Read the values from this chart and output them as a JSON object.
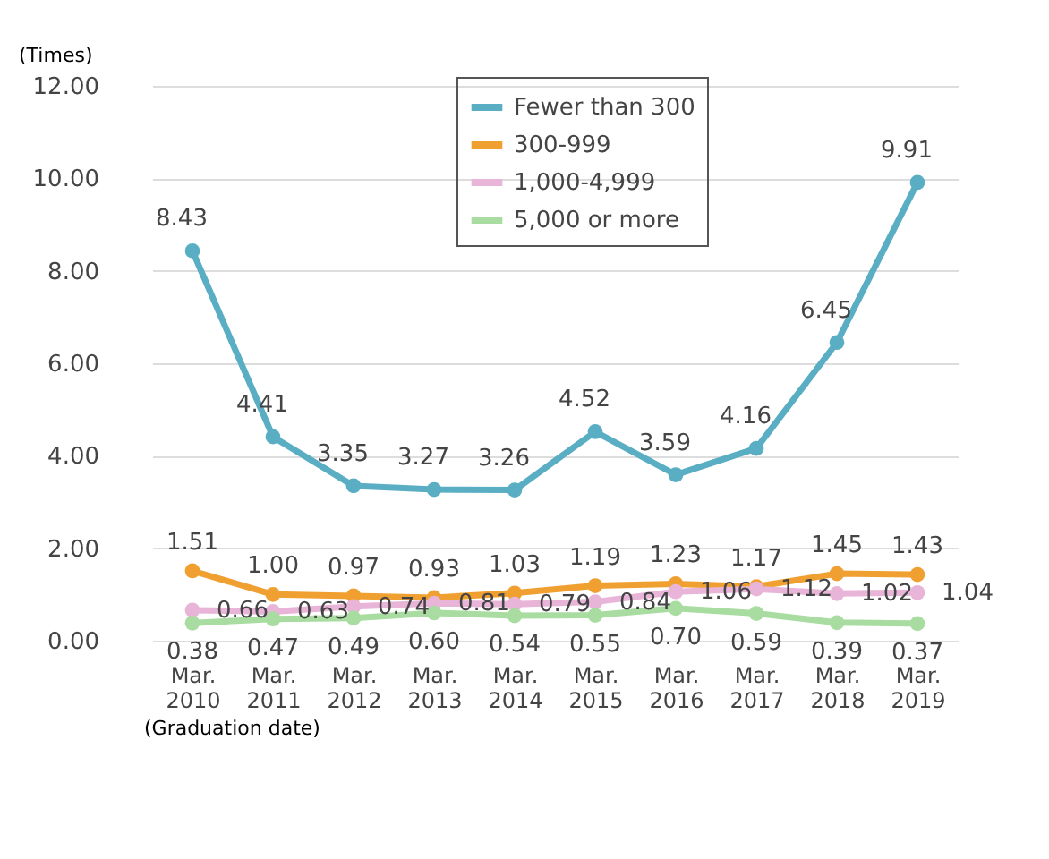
{
  "chart_data": {
    "type": "line",
    "ylabel": "(Times)",
    "xlabel": "(Graduation date)",
    "categories": [
      "Mar. 2010",
      "Mar. 2011",
      "Mar. 2012",
      "Mar. 2013",
      "Mar. 2014",
      "Mar. 2015",
      "Mar. 2016",
      "Mar. 2017",
      "Mar. 2018",
      "Mar. 2019"
    ],
    "series": [
      {
        "name": "Fewer than 300",
        "color": "#5aaec3",
        "values": [
          8.43,
          4.41,
          3.35,
          3.27,
          3.26,
          4.52,
          3.59,
          4.16,
          6.45,
          9.91
        ],
        "value_labels": [
          "8.43",
          "4.41",
          "3.35",
          "3.27",
          "3.26",
          "4.52",
          "3.59",
          "4.16",
          "6.45",
          "9.91"
        ]
      },
      {
        "name": "300-999",
        "color": "#f0a030",
        "values": [
          1.51,
          1.0,
          0.97,
          0.93,
          1.03,
          1.19,
          1.23,
          1.17,
          1.45,
          1.43
        ],
        "value_labels": [
          "1.51",
          "1.00",
          "0.97",
          "0.93",
          "1.03",
          "1.19",
          "1.23",
          "1.17",
          "1.45",
          "1.43"
        ]
      },
      {
        "name": "1,000-4,999",
        "color": "#e8b4d8",
        "values": [
          0.66,
          0.63,
          0.74,
          0.81,
          0.79,
          0.84,
          1.06,
          1.12,
          1.02,
          1.04
        ],
        "value_labels": [
          "0.66",
          "0.63",
          "0.74",
          "0.81",
          "0.79",
          "0.84",
          "1.06",
          "1.12",
          "1.02",
          "1.04"
        ]
      },
      {
        "name": "5,000 or more",
        "color": "#a8dca0",
        "values": [
          0.38,
          0.47,
          0.49,
          0.6,
          0.54,
          0.55,
          0.7,
          0.59,
          0.39,
          0.37
        ],
        "value_labels": [
          "0.38",
          "0.47",
          "0.49",
          "0.60",
          "0.54",
          "0.55",
          "0.70",
          "0.59",
          "0.39",
          "0.37"
        ]
      }
    ],
    "ylim": [
      0,
      12
    ],
    "yticks": [
      {
        "value": 0,
        "label": "0.00"
      },
      {
        "value": 2,
        "label": "2.00"
      },
      {
        "value": 4,
        "label": "4.00"
      },
      {
        "value": 6,
        "label": "6.00"
      },
      {
        "value": 8,
        "label": "8.00"
      },
      {
        "value": 10,
        "label": "10.00"
      },
      {
        "value": 12,
        "label": "12.00"
      }
    ],
    "grid": "y",
    "legend": "top",
    "marker": "circle",
    "line_style": "solid"
  }
}
